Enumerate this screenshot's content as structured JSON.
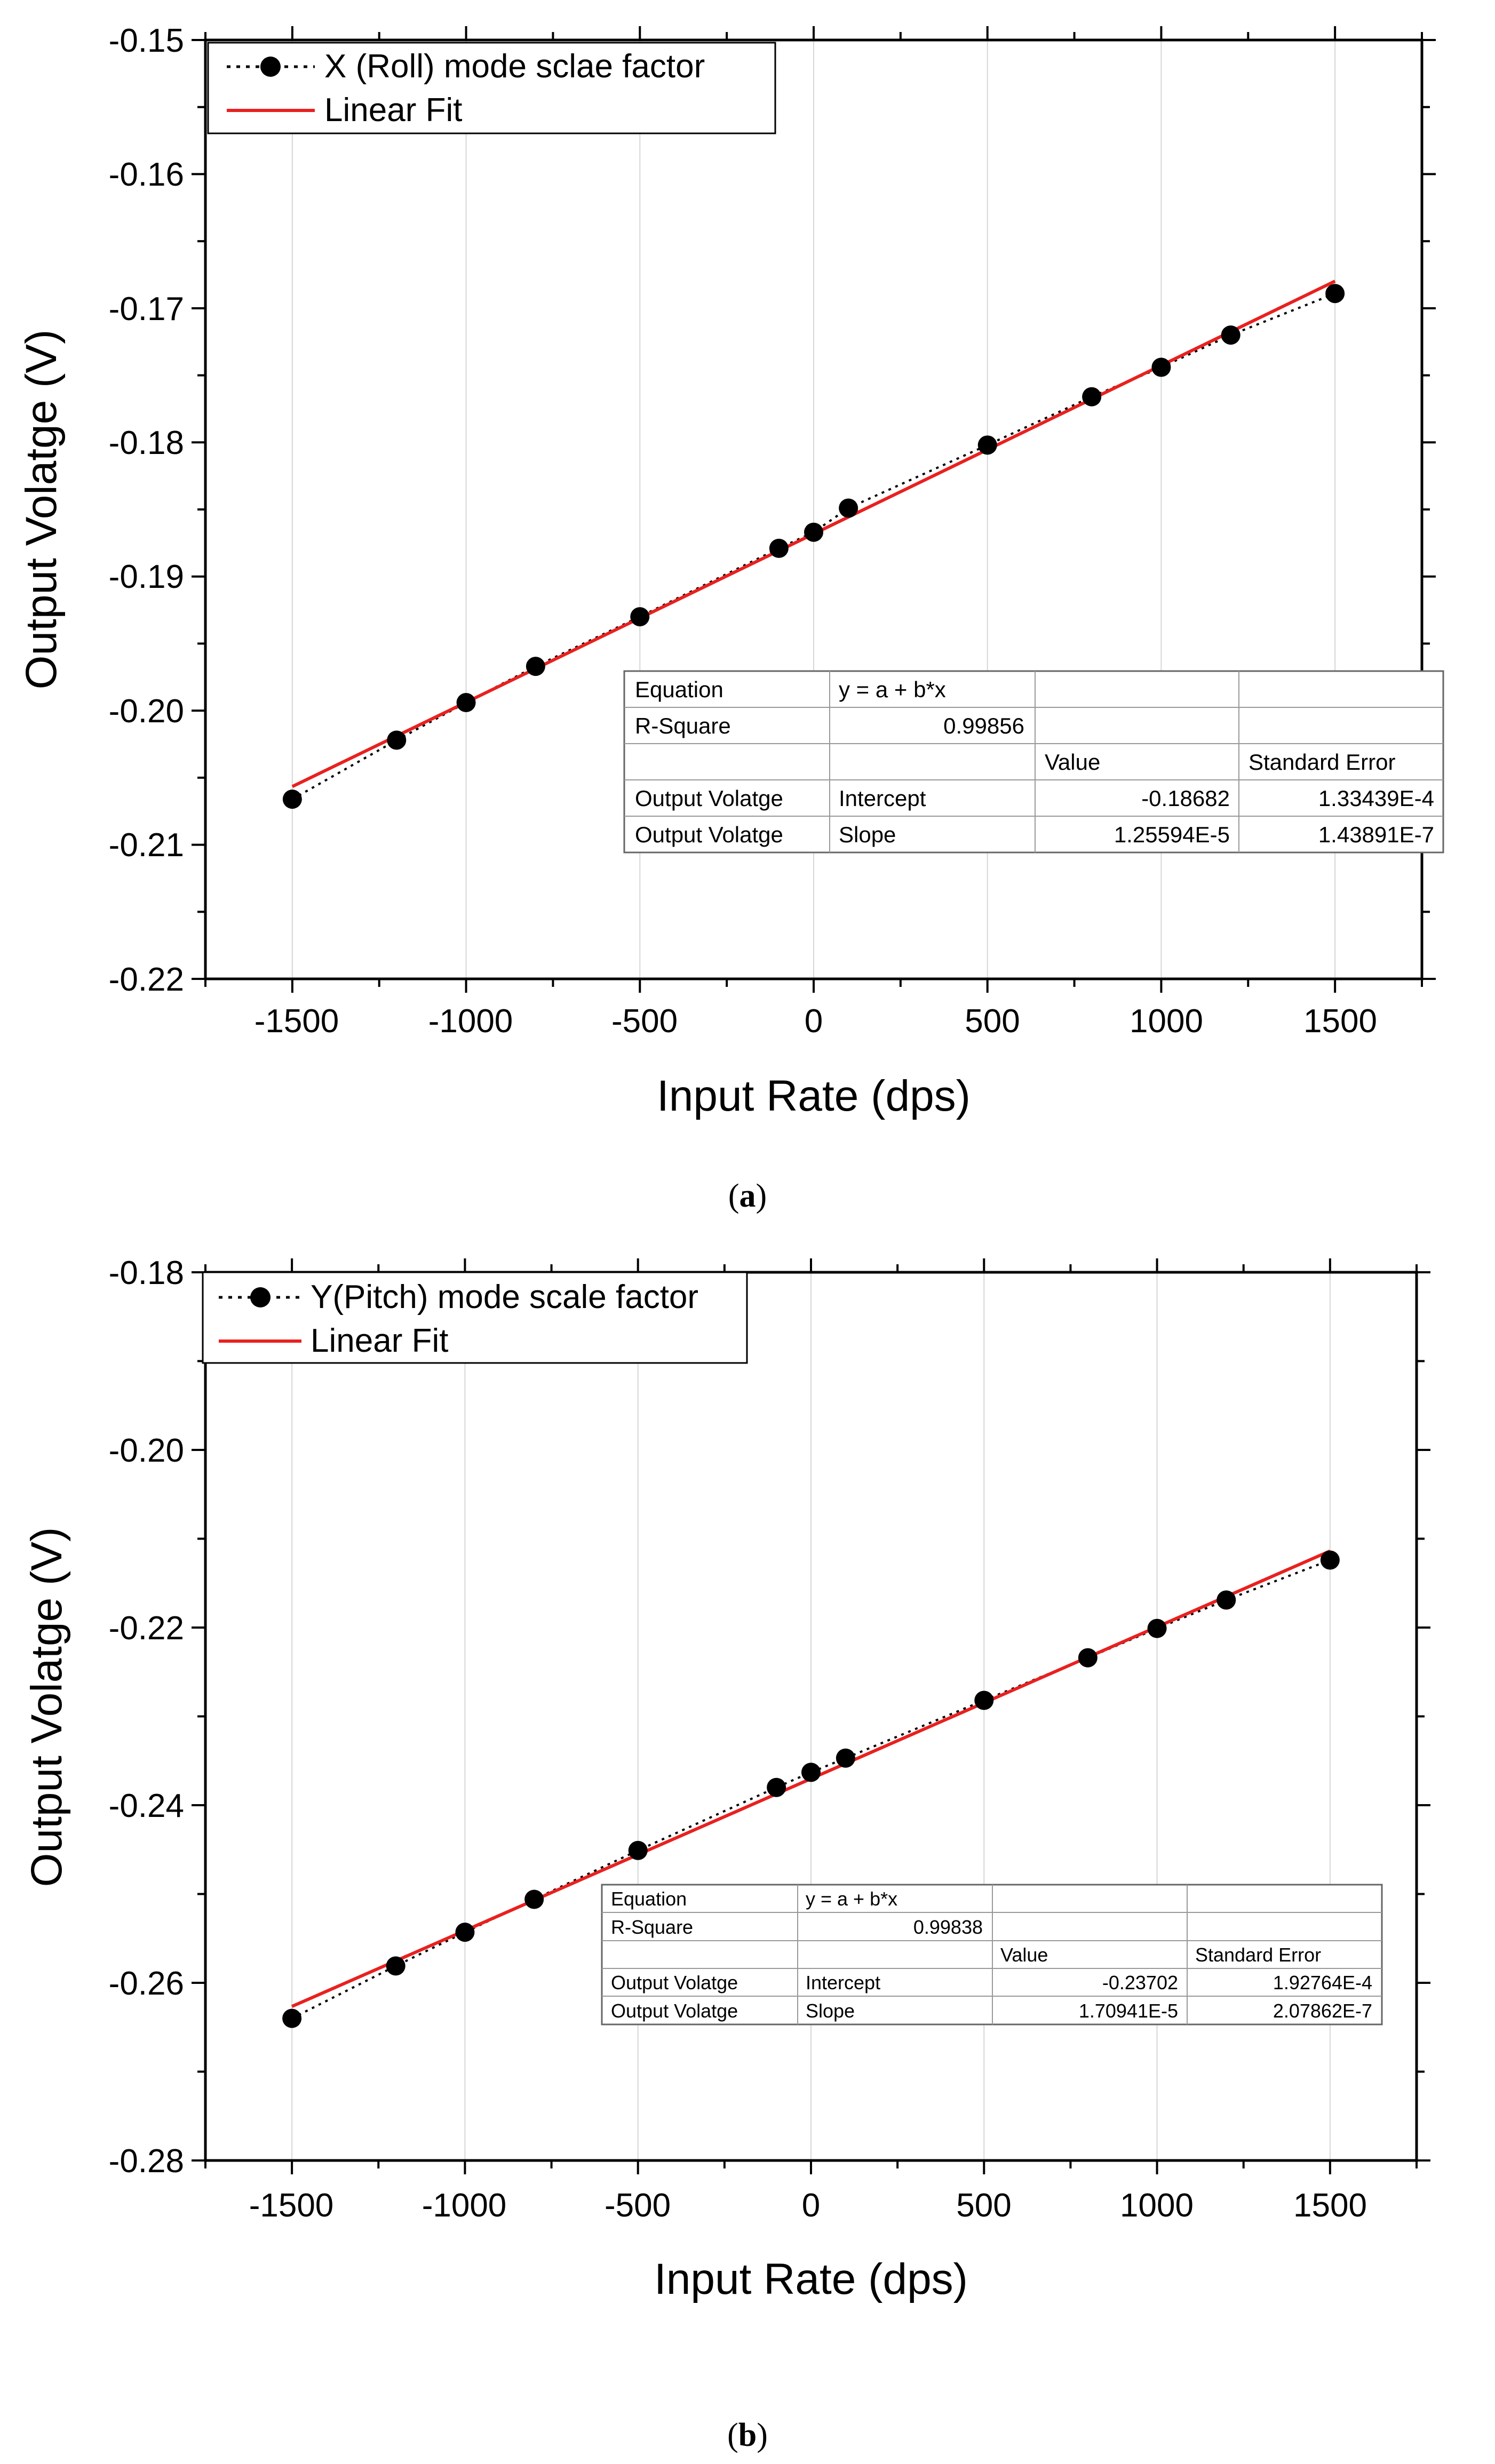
{
  "chart_data": [
    {
      "type": "scatter",
      "panel_label": "a",
      "xlabel": "Input Rate (dps)",
      "ylabel": "Output Volatge (V)",
      "xlim": [
        -1750,
        1750
      ],
      "ylim": [
        -0.22,
        -0.15
      ],
      "xticks": [
        "-1500",
        "-1000",
        "-500",
        "0",
        "500",
        "1000",
        "1500"
      ],
      "yticks": [
        "-0.15",
        "-0.16",
        "-0.17",
        "-0.18",
        "-0.19",
        "-0.20",
        "-0.21",
        "-0.22"
      ],
      "grid": "vertical",
      "legend_position": "top-left",
      "legend": [
        "X (Roll) mode sclae factor",
        "Linear Fit"
      ],
      "series": [
        {
          "name": "X (Roll) mode sclae factor",
          "x": [
            -1500,
            -1200,
            -1000,
            -800,
            -500,
            -100,
            0,
            100,
            500,
            800,
            1000,
            1200,
            1500
          ],
          "y": [
            -0.2066,
            -0.2022,
            -0.1994,
            -0.1967,
            -0.193,
            -0.1879,
            -0.1867,
            -0.1849,
            -0.1802,
            -0.1766,
            -0.1744,
            -0.172,
            -0.1689
          ],
          "color": "#000000"
        }
      ],
      "fit": {
        "name": "Linear Fit",
        "intercept": -0.18682,
        "slope": 1.25594e-05,
        "x_range": [
          -1500,
          1500
        ],
        "color": "#e8211f"
      },
      "table": {
        "equation_label": "Equation",
        "equation": "y = a + b*x",
        "rsq_label": "R-Square",
        "rsq": "0.99856",
        "col_value": "Value",
        "col_se": "Standard Error",
        "rows": [
          {
            "name": "Output Volatge",
            "param": "Intercept",
            "value": "-0.18682",
            "se": "1.33439E-4"
          },
          {
            "name": "Output Volatge",
            "param": "Slope",
            "value": "1.25594E-5",
            "se": "1.43891E-7"
          }
        ]
      }
    },
    {
      "type": "scatter",
      "panel_label": "b",
      "xlabel": "Input Rate (dps)",
      "ylabel": "Output Volatge (V)",
      "xlim": [
        -1750,
        1750
      ],
      "ylim": [
        -0.28,
        -0.18
      ],
      "xticks": [
        "-1500",
        "-1000",
        "-500",
        "0",
        "500",
        "1000",
        "1500"
      ],
      "yticks": [
        "-0.18",
        "-0.20",
        "-0.22",
        "-0.24",
        "-0.26",
        "-0.28"
      ],
      "grid": "vertical",
      "legend_position": "top-left",
      "legend": [
        "Y(Pitch) mode scale factor",
        "Linear Fit"
      ],
      "series": [
        {
          "name": "Y(Pitch) mode scale factor",
          "x": [
            -1500,
            -1200,
            -1000,
            -800,
            -500,
            -100,
            0,
            100,
            500,
            800,
            1000,
            1200,
            1500
          ],
          "y": [
            -0.264,
            -0.2581,
            -0.2543,
            -0.2506,
            -0.2451,
            -0.238,
            -0.2363,
            -0.2347,
            -0.2282,
            -0.2234,
            -0.2201,
            -0.2169,
            -0.2124
          ],
          "color": "#000000"
        }
      ],
      "fit": {
        "name": "Linear Fit",
        "intercept": -0.23702,
        "slope": 1.70941e-05,
        "x_range": [
          -1500,
          1500
        ],
        "color": "#e8211f"
      },
      "table": {
        "equation_label": "Equation",
        "equation": "y = a + b*x",
        "rsq_label": "R-Square",
        "rsq": "0.99838",
        "col_value": "Value",
        "col_se": "Standard Error",
        "rows": [
          {
            "name": "Output Volatge",
            "param": "Intercept",
            "value": "-0.23702",
            "se": "1.92764E-4"
          },
          {
            "name": "Output Volatge",
            "param": "Slope",
            "value": "1.70941E-5",
            "se": "2.07862E-7"
          }
        ]
      }
    }
  ]
}
